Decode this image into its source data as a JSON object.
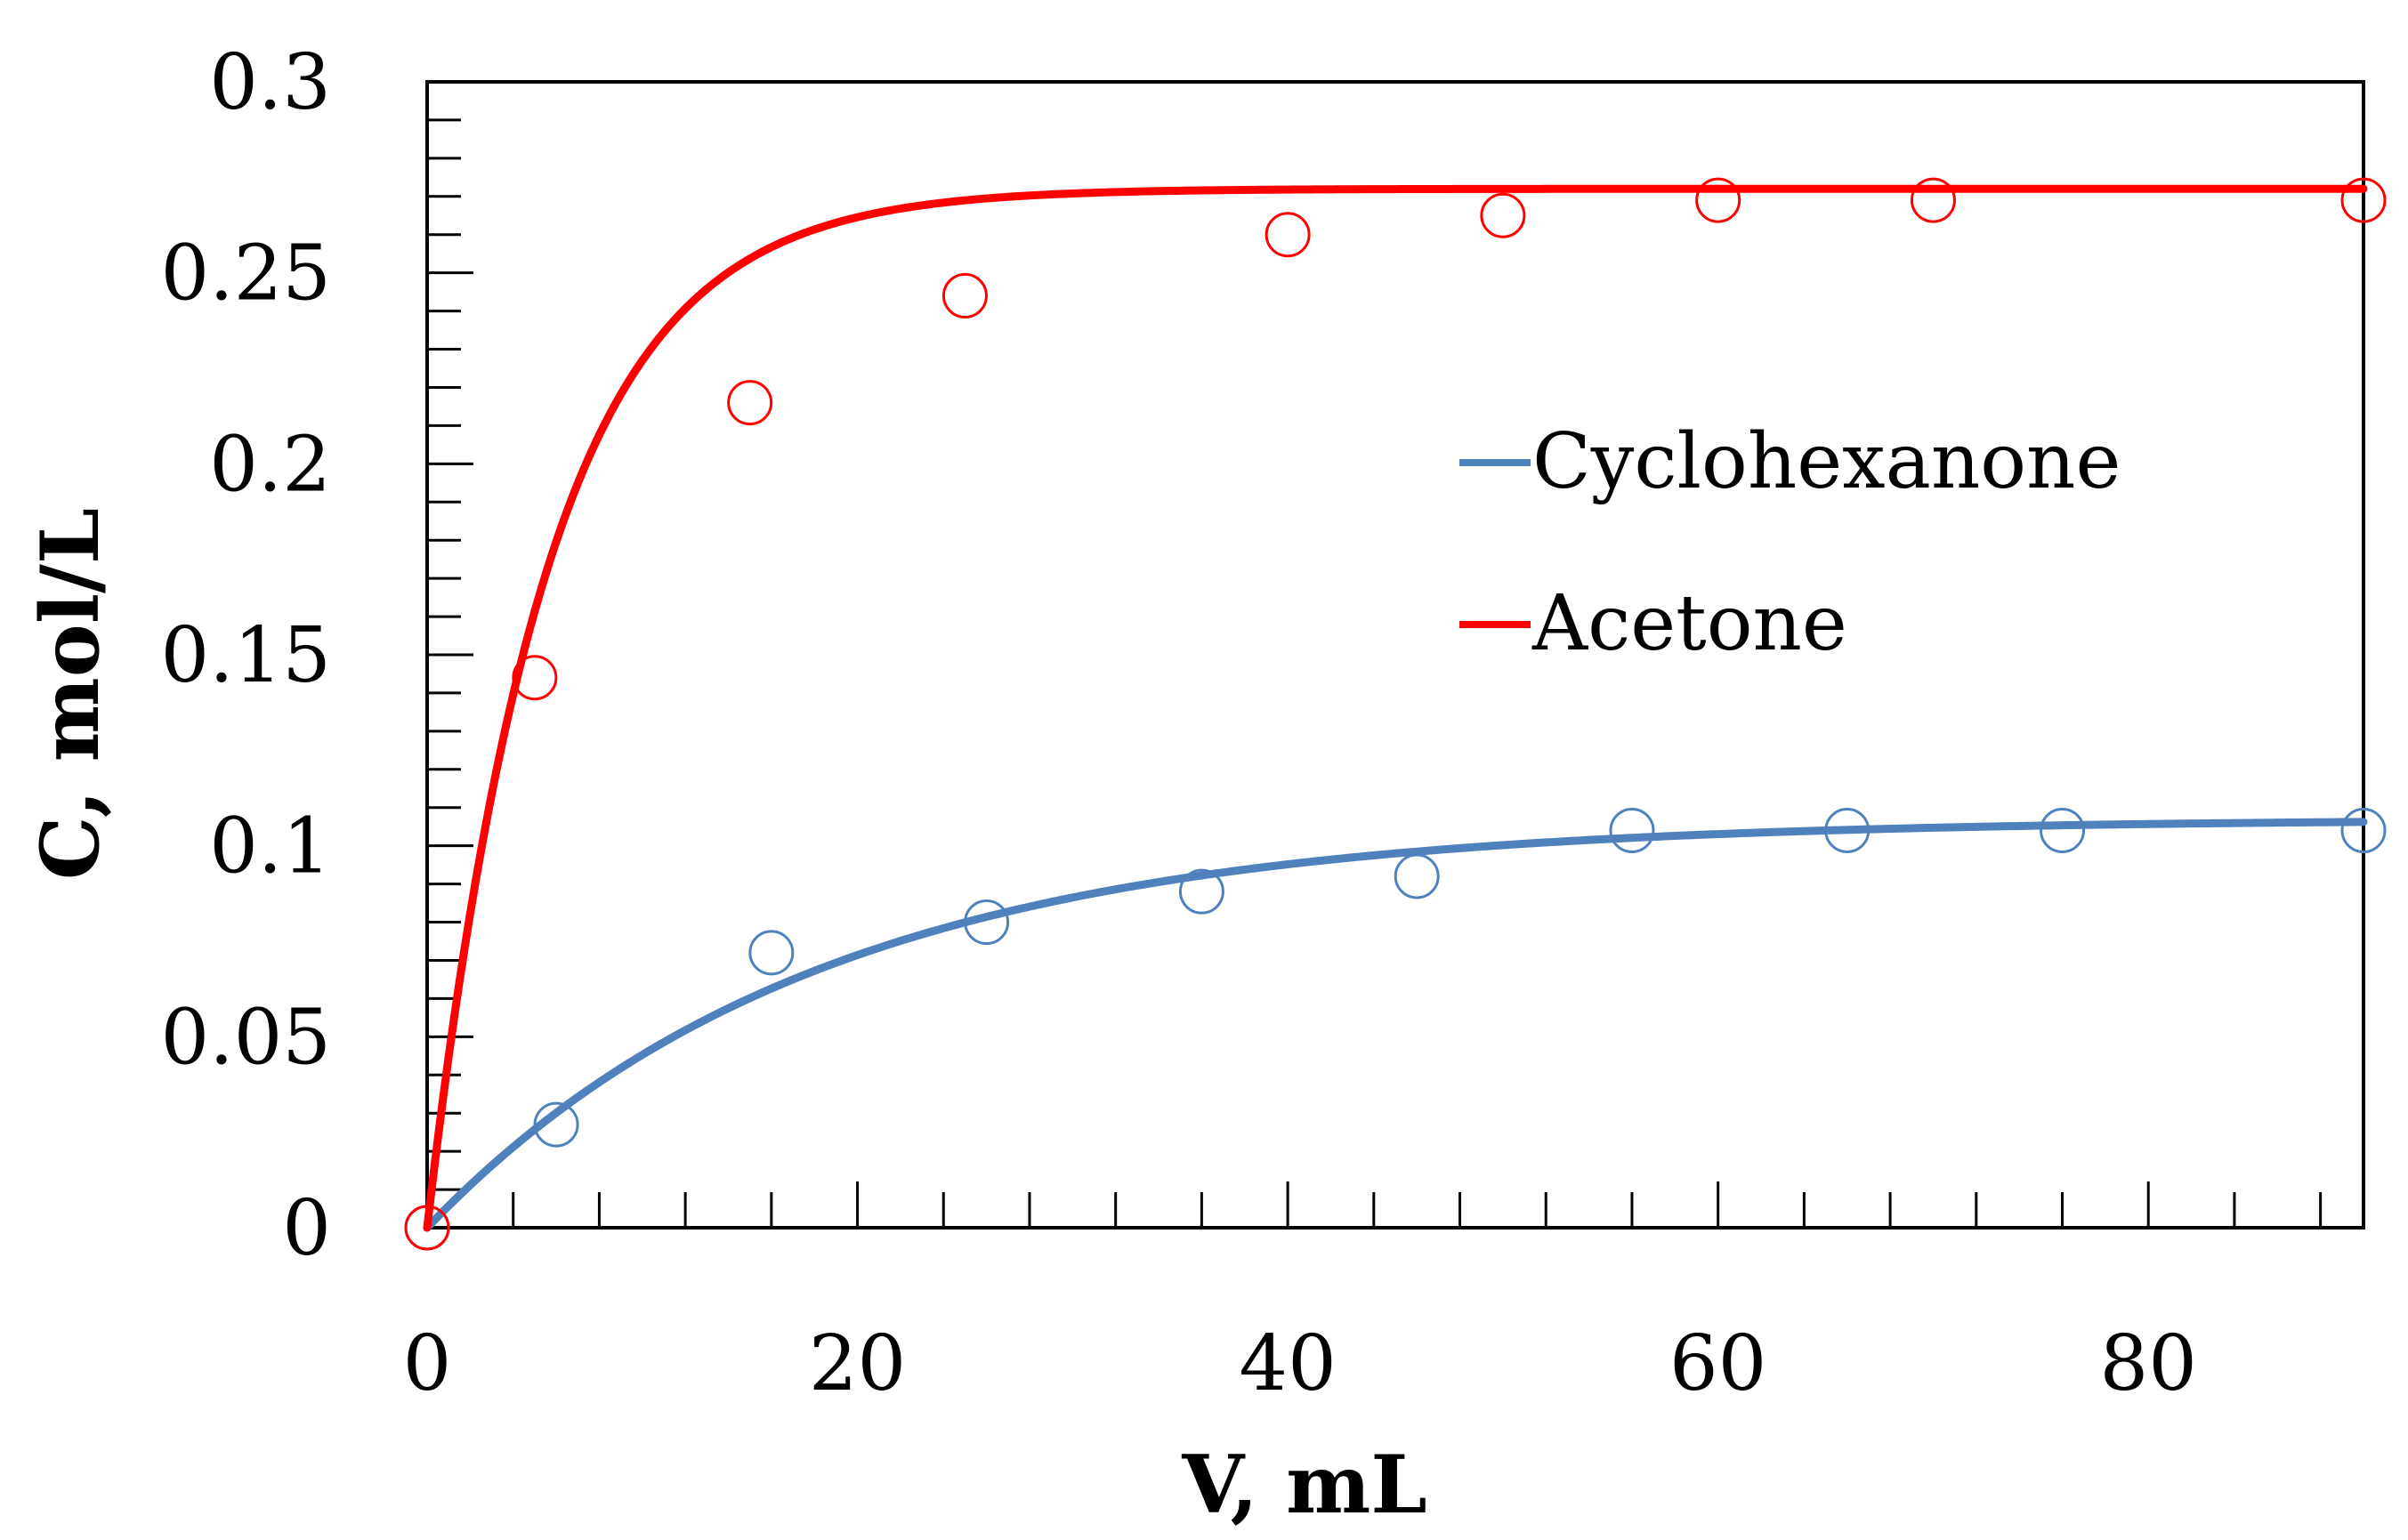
{
  "chart_data": {
    "type": "scatter",
    "title": "",
    "xlabel": "V, mL",
    "ylabel": "C, mol/L",
    "xlim": [
      0,
      90
    ],
    "ylim": [
      0,
      0.3
    ],
    "xticks": [
      0,
      20,
      40,
      60,
      80
    ],
    "xtick_labels": [
      "0",
      "20",
      "40",
      "60",
      "80"
    ],
    "yticks": [
      0,
      0.05,
      0.1,
      0.15,
      0.2,
      0.25,
      0.3
    ],
    "ytick_labels": [
      "0",
      "0.05",
      "0.1",
      "0.15",
      "0.2",
      "0.25",
      "0.3"
    ],
    "grid": false,
    "legend_position": "center-right",
    "series": [
      {
        "name": "Cyclohexanone",
        "color": "#4f81bd",
        "marker": "open-circle",
        "points": {
          "x": [
            0,
            6,
            16,
            26,
            36,
            46,
            56,
            66,
            76,
            90
          ],
          "y": [
            0,
            0.027,
            0.072,
            0.08,
            0.088,
            0.092,
            0.104,
            0.104,
            0.104,
            0.104
          ]
        },
        "fit": {
          "model": "saturation",
          "cmax": 0.107,
          "k": 0.055,
          "line": "solid"
        }
      },
      {
        "name": "Acetone",
        "color": "#ff0000",
        "marker": "open-circle",
        "points": {
          "x": [
            0,
            5,
            15,
            25,
            40,
            50,
            60,
            70,
            90
          ],
          "y": [
            0,
            0.144,
            0.216,
            0.244,
            0.26,
            0.265,
            0.269,
            0.269,
            0.269
          ]
        },
        "fit": {
          "model": "saturation",
          "cmax": 0.272,
          "k": 0.18,
          "line": "solid"
        }
      }
    ]
  }
}
